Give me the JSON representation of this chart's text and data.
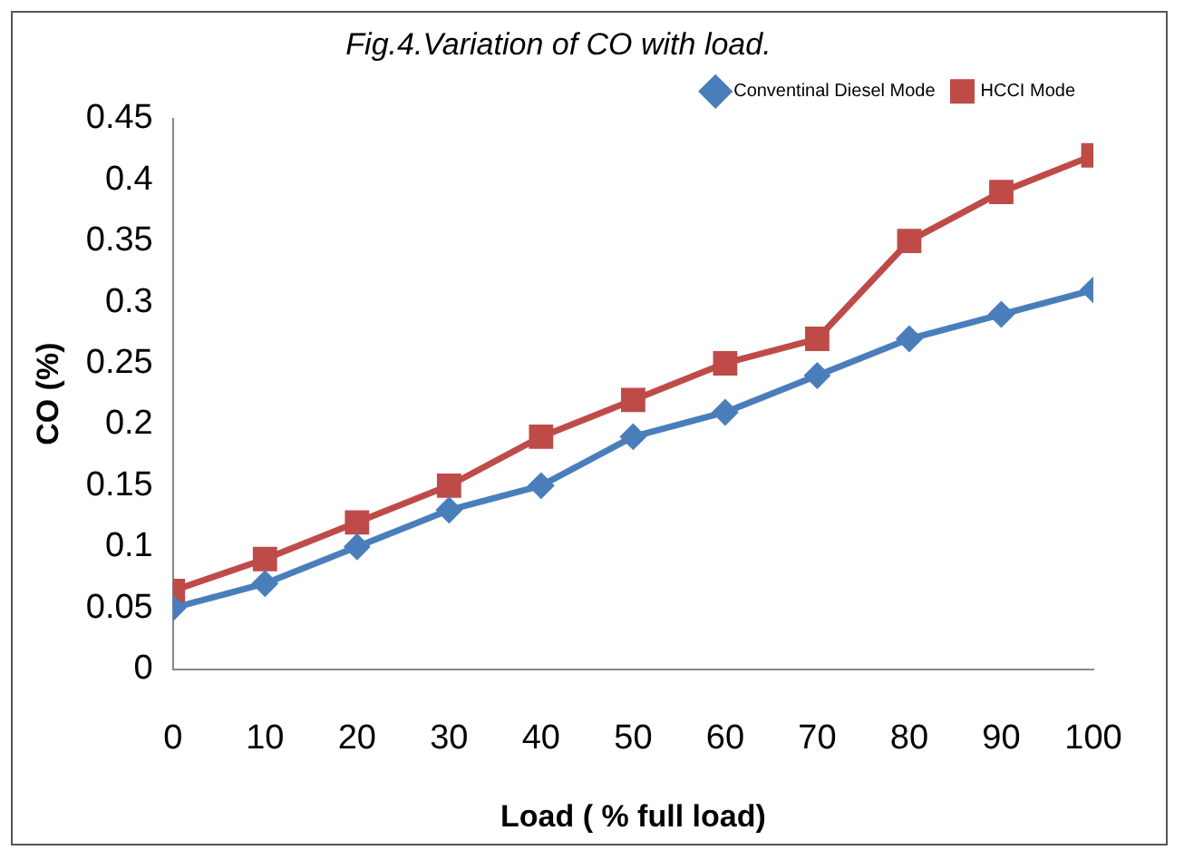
{
  "chart_data": {
    "type": "line",
    "title": "Fig.4.Variation of CO with load.",
    "xlabel": "Load ( % full load)",
    "ylabel": "CO (%)",
    "x": [
      0,
      10,
      20,
      30,
      40,
      50,
      60,
      70,
      80,
      90,
      100
    ],
    "series": [
      {
        "name": "Conventinal Diesel Mode",
        "color": "#4a7ebb",
        "marker": "diamond",
        "values": [
          0.05,
          0.07,
          0.1,
          0.13,
          0.15,
          0.19,
          0.21,
          0.24,
          0.27,
          0.29,
          0.31
        ]
      },
      {
        "name": "HCCI Mode",
        "color": "#be4b48",
        "marker": "square",
        "values": [
          0.064,
          0.09,
          0.12,
          0.15,
          0.19,
          0.22,
          0.25,
          0.27,
          0.35,
          0.39,
          0.42
        ]
      }
    ],
    "xlim": [
      0,
      100
    ],
    "xticks": [
      0,
      10,
      20,
      30,
      40,
      50,
      60,
      70,
      80,
      90,
      100
    ],
    "ylim": [
      0,
      0.45
    ],
    "yticks": [
      0,
      0.05,
      0.1,
      0.15,
      0.2,
      0.25,
      0.3,
      0.35,
      0.4,
      0.45
    ],
    "grid": false,
    "legend": "top right",
    "line_style": "solid"
  }
}
